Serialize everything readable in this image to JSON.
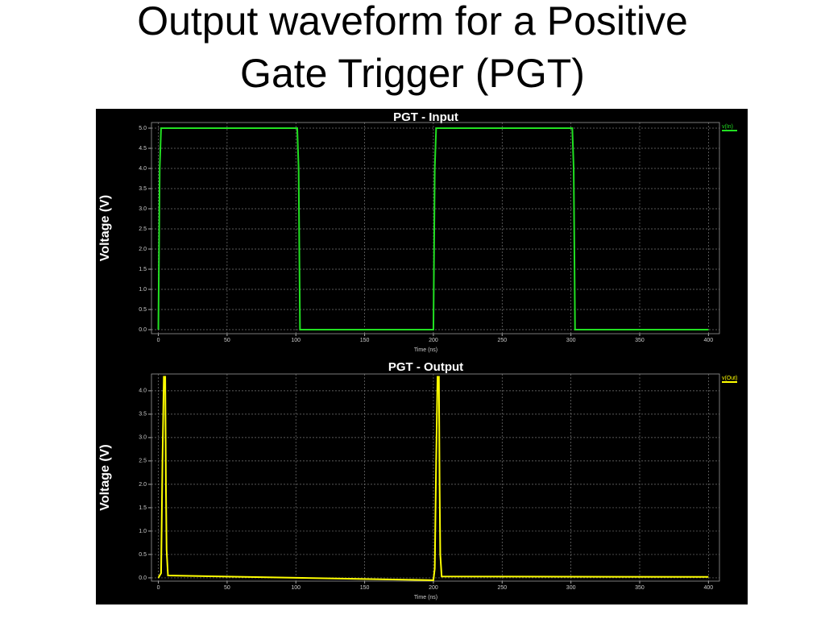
{
  "slide": {
    "title_lines": [
      "Output waveform for a Positive",
      "Gate Trigger (PGT)"
    ]
  },
  "chart_data": [
    {
      "type": "line",
      "title": "PGT - Input",
      "x_label": "Time (ns)",
      "y_label": "Voltage (V)",
      "xlim": [
        -5,
        408
      ],
      "xticks": [
        0,
        50,
        100,
        150,
        200,
        250,
        300,
        350,
        400
      ],
      "ylim": [
        -0.1,
        5.14
      ],
      "yticks": [
        {
          "value": 0,
          "label": "0.0"
        },
        0.5,
        {
          "value": 1,
          "label": "1.0"
        },
        1.5,
        {
          "value": 2,
          "label": "2.0"
        },
        2.5,
        {
          "value": 3,
          "label": "3.0"
        },
        3.5,
        {
          "value": 4,
          "label": "4.0"
        },
        4.5,
        {
          "value": 5,
          "label": "5.0"
        }
      ],
      "grid": true,
      "legend": "top-right",
      "x": [
        0,
        1,
        2,
        101,
        102,
        103,
        200,
        201,
        202,
        301,
        302,
        303,
        400
      ],
      "series": [
        {
          "name": "v(In)",
          "color": "#22e022",
          "values": [
            0,
            4,
            5,
            5,
            4,
            0,
            0,
            4,
            5,
            5,
            4,
            0,
            0
          ]
        }
      ]
    },
    {
      "type": "line",
      "title": "PGT - Output",
      "x_label": "Time (ns)",
      "y_label": "Voltage (V)",
      "xlim": [
        -5,
        408
      ],
      "xticks": [
        0,
        50,
        100,
        150,
        200,
        250,
        300,
        350,
        400
      ],
      "ylim": [
        -0.07,
        4.36
      ],
      "yticks": [
        {
          "value": 0,
          "label": "0.0"
        },
        0.5,
        {
          "value": 1,
          "label": "1.0"
        },
        1.5,
        {
          "value": 2,
          "label": "2.0"
        },
        2.5,
        {
          "value": 3,
          "label": "3.0"
        },
        3.5,
        {
          "value": 4,
          "label": "4.0"
        }
      ],
      "grid": true,
      "legend": "top-right",
      "x": [
        0,
        2,
        3,
        4,
        5,
        5.5,
        6,
        7,
        200,
        201,
        202,
        203,
        204,
        204.5,
        205,
        206,
        400
      ],
      "series": [
        {
          "name": "v(Out)",
          "color": "#ffff00",
          "values": [
            0,
            0.1,
            2.5,
            4.3,
            4.3,
            2,
            0.6,
            0.05,
            -0.05,
            0.2,
            2.5,
            4.3,
            4.3,
            2,
            0.5,
            0.03,
            0.02
          ]
        }
      ]
    }
  ]
}
